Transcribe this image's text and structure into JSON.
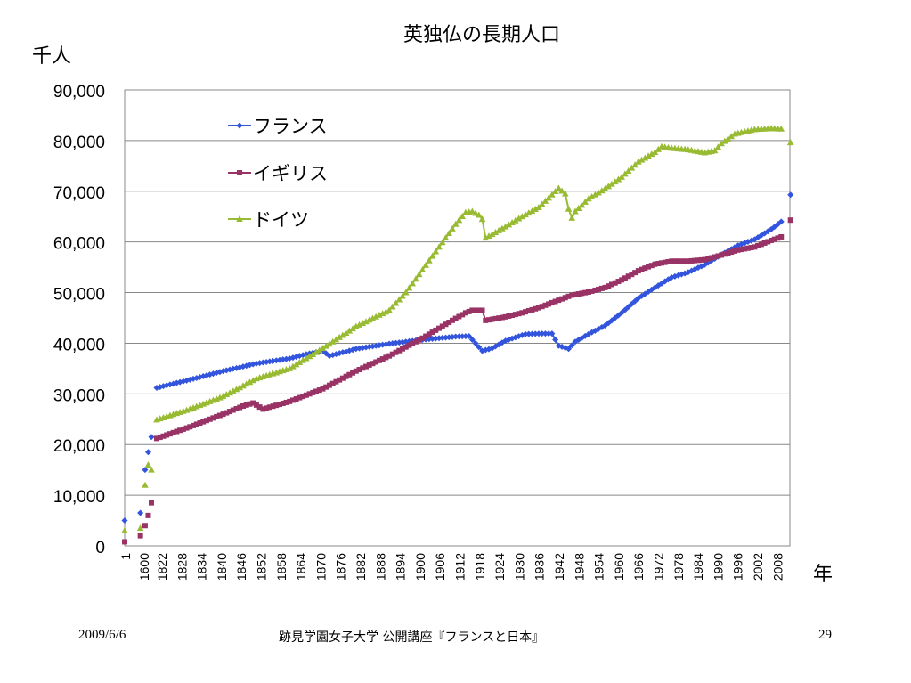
{
  "slide": {
    "date": "2009/6/6",
    "footer_center": "跡見学園女子大学 公開講座『フランスと日本』",
    "page_number": "29"
  },
  "chart_data": {
    "type": "line",
    "title": "英独仏の長期人口",
    "ylabel": "千人",
    "xlabel": "年",
    "ylim": [
      0,
      90000
    ],
    "yticks": [
      0,
      10000,
      20000,
      30000,
      40000,
      50000,
      60000,
      70000,
      80000,
      90000
    ],
    "ytick_labels": [
      "0",
      "10,000",
      "20,000",
      "30,000",
      "40,000",
      "50,000",
      "60,000",
      "70,000",
      "80,000",
      "90,000"
    ],
    "xtick_labels": [
      "1",
      "1600",
      "1822",
      "1828",
      "1834",
      "1840",
      "1846",
      "1852",
      "1858",
      "1864",
      "1870",
      "1876",
      "1882",
      "1888",
      "1894",
      "1900",
      "1906",
      "1912",
      "1918",
      "1924",
      "1930",
      "1936",
      "1942",
      "1948",
      "1954",
      "1960",
      "1966",
      "1972",
      "1978",
      "1984",
      "1990",
      "1996",
      "2002",
      "2008"
    ],
    "grid": true,
    "legend_position": "upper-left inside",
    "colors": {
      "france": "#3355dd",
      "uk": "#993366",
      "germany": "#99bb33"
    },
    "series": [
      {
        "name": "フランス",
        "marker": "diamond",
        "early": [
          [
            1,
            5000
          ],
          [
            1000,
            6500
          ],
          [
            1300,
            15000
          ],
          [
            1500,
            18500
          ],
          [
            1700,
            21500
          ]
        ],
        "values": [
          [
            1820,
            31200
          ],
          [
            1830,
            32800
          ],
          [
            1840,
            34500
          ],
          [
            1850,
            36000
          ],
          [
            1860,
            37000
          ],
          [
            1866,
            38000
          ],
          [
            1870,
            38500
          ],
          [
            1872,
            37500
          ],
          [
            1880,
            38900
          ],
          [
            1890,
            39900
          ],
          [
            1900,
            40700
          ],
          [
            1910,
            41300
          ],
          [
            1914,
            41400
          ],
          [
            1916,
            40000
          ],
          [
            1918,
            38500
          ],
          [
            1921,
            39000
          ],
          [
            1925,
            40500
          ],
          [
            1931,
            41800
          ],
          [
            1936,
            41900
          ],
          [
            1939,
            41900
          ],
          [
            1941,
            39500
          ],
          [
            1944,
            38900
          ],
          [
            1946,
            40300
          ],
          [
            1950,
            41800
          ],
          [
            1955,
            43500
          ],
          [
            1960,
            46000
          ],
          [
            1965,
            48900
          ],
          [
            1970,
            51000
          ],
          [
            1975,
            53000
          ],
          [
            1980,
            54000
          ],
          [
            1985,
            55500
          ],
          [
            1990,
            57500
          ],
          [
            1995,
            59300
          ],
          [
            2000,
            60500
          ],
          [
            2005,
            62500
          ],
          [
            2008,
            64000
          ]
        ],
        "final": [
          2010,
          69300
        ]
      },
      {
        "name": "イギリス",
        "marker": "square",
        "early": [
          [
            1,
            800
          ],
          [
            1000,
            2000
          ],
          [
            1300,
            4000
          ],
          [
            1500,
            6000
          ],
          [
            1700,
            8500
          ]
        ],
        "values": [
          [
            1820,
            21200
          ],
          [
            1830,
            23500
          ],
          [
            1840,
            26000
          ],
          [
            1846,
            27600
          ],
          [
            1849,
            28200
          ],
          [
            1852,
            27000
          ],
          [
            1860,
            28500
          ],
          [
            1870,
            31000
          ],
          [
            1880,
            34500
          ],
          [
            1890,
            37500
          ],
          [
            1900,
            41000
          ],
          [
            1910,
            44900
          ],
          [
            1913,
            46000
          ],
          [
            1915,
            46500
          ],
          [
            1918,
            46500
          ],
          [
            1919,
            44500
          ],
          [
            1925,
            45200
          ],
          [
            1930,
            46000
          ],
          [
            1935,
            47000
          ],
          [
            1939,
            48000
          ],
          [
            1945,
            49500
          ],
          [
            1950,
            50100
          ],
          [
            1955,
            51000
          ],
          [
            1960,
            52500
          ],
          [
            1965,
            54300
          ],
          [
            1970,
            55600
          ],
          [
            1975,
            56200
          ],
          [
            1980,
            56200
          ],
          [
            1985,
            56500
          ],
          [
            1990,
            57400
          ],
          [
            1995,
            58400
          ],
          [
            2000,
            59000
          ],
          [
            2005,
            60300
          ],
          [
            2008,
            61000
          ]
        ],
        "final": [
          2010,
          64300
        ]
      },
      {
        "name": "ドイツ",
        "marker": "triangle",
        "early": [
          [
            1,
            3000
          ],
          [
            1000,
            3500
          ],
          [
            1300,
            12000
          ],
          [
            1500,
            16000
          ],
          [
            1700,
            15000
          ]
        ],
        "values": [
          [
            1820,
            24900
          ],
          [
            1830,
            27000
          ],
          [
            1840,
            29500
          ],
          [
            1850,
            33000
          ],
          [
            1860,
            35000
          ],
          [
            1870,
            39000
          ],
          [
            1880,
            43300
          ],
          [
            1890,
            46500
          ],
          [
            1895,
            50000
          ],
          [
            1900,
            54500
          ],
          [
            1905,
            59000
          ],
          [
            1910,
            63500
          ],
          [
            1913,
            65800
          ],
          [
            1915,
            66000
          ],
          [
            1917,
            65300
          ],
          [
            1918,
            64500
          ],
          [
            1919,
            60800
          ],
          [
            1921,
            61500
          ],
          [
            1925,
            63000
          ],
          [
            1930,
            65000
          ],
          [
            1935,
            66800
          ],
          [
            1939,
            69300
          ],
          [
            1941,
            70600
          ],
          [
            1943,
            69500
          ],
          [
            1944,
            66500
          ],
          [
            1945,
            64700
          ],
          [
            1946,
            66000
          ],
          [
            1950,
            68500
          ],
          [
            1955,
            70500
          ],
          [
            1960,
            72800
          ],
          [
            1965,
            75800
          ],
          [
            1970,
            77700
          ],
          [
            1972,
            78800
          ],
          [
            1975,
            78500
          ],
          [
            1980,
            78200
          ],
          [
            1985,
            77600
          ],
          [
            1988,
            78000
          ],
          [
            1990,
            79400
          ],
          [
            1994,
            81300
          ],
          [
            2000,
            82200
          ],
          [
            2005,
            82400
          ],
          [
            2008,
            82300
          ]
        ],
        "final": [
          2010,
          79600
        ]
      }
    ]
  }
}
